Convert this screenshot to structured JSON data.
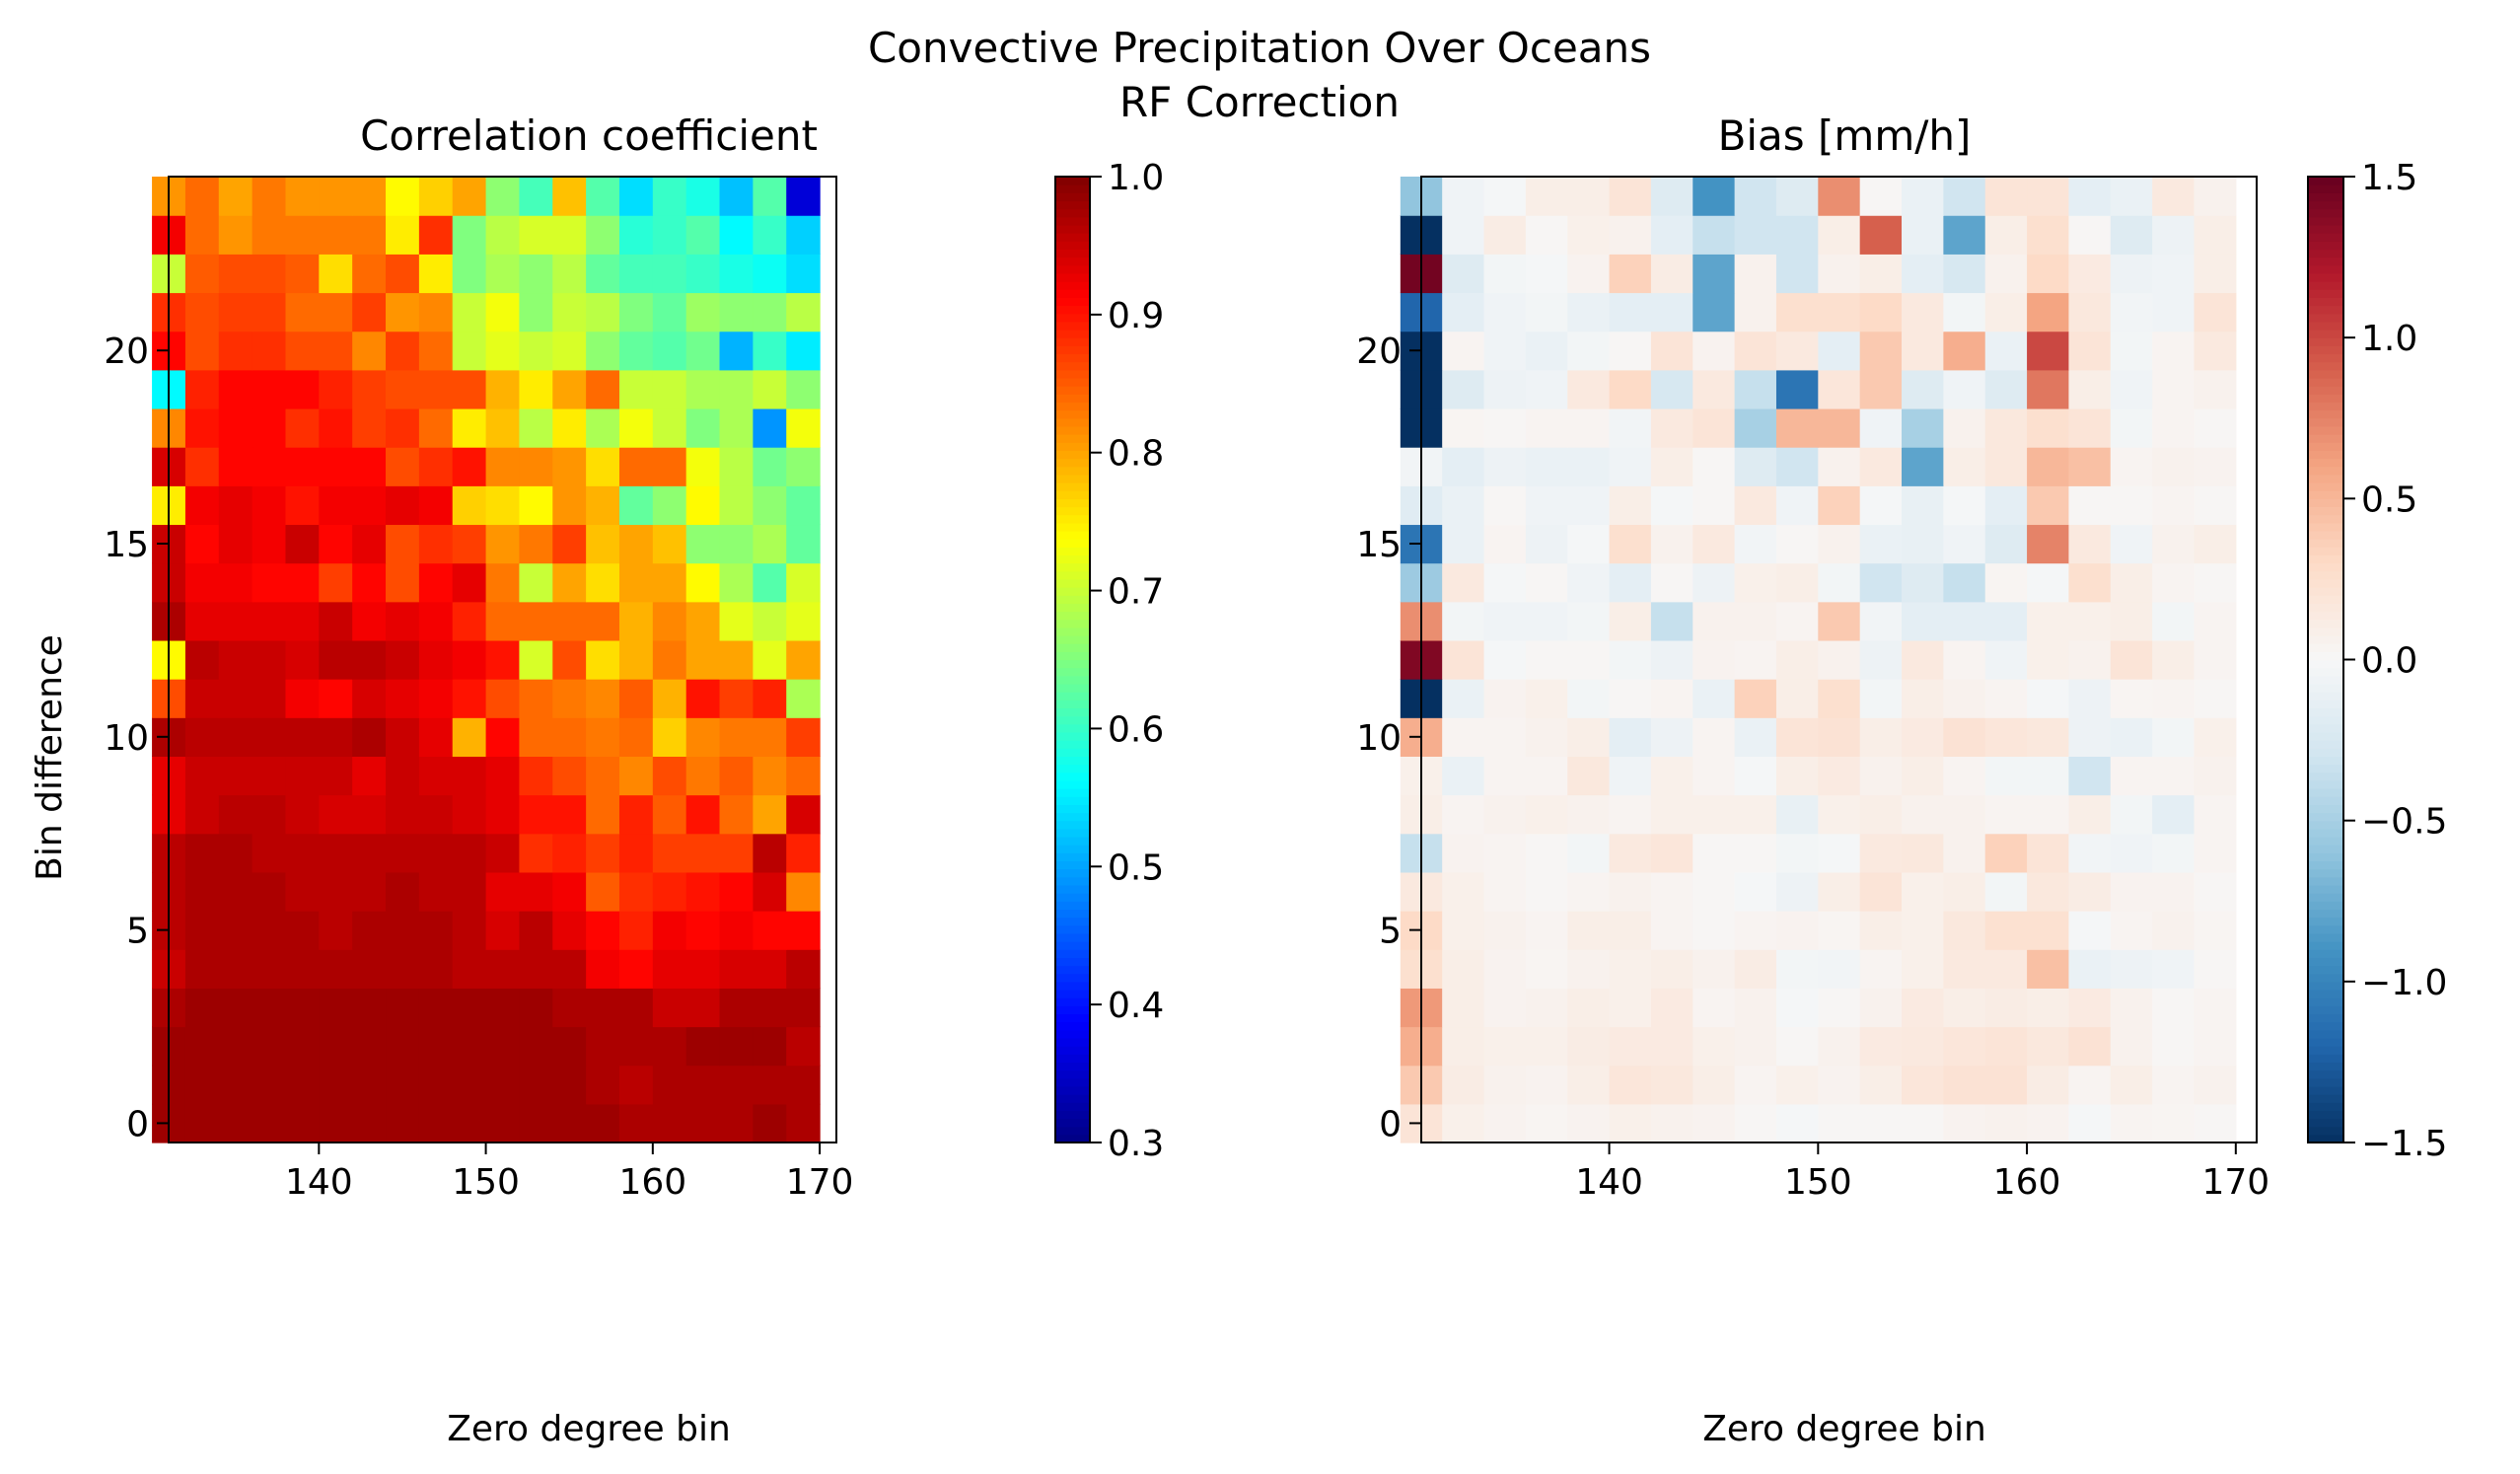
{
  "figure": {
    "title": "Convective Precipitation Over Oceans",
    "subtitle": "RF Correction"
  },
  "chart_data": [
    {
      "type": "heatmap",
      "title": "Correlation coefficient",
      "xlabel": "Zero degree bin",
      "ylabel": "Bin difference",
      "x_start": 131,
      "x_step": 2,
      "y_start": 0,
      "y_step": 1,
      "xlim": [
        131,
        171
      ],
      "ylim": [
        -0.5,
        24.5
      ],
      "xticks": [
        140,
        150,
        160,
        170
      ],
      "yticks": [
        0,
        5,
        10,
        15,
        20
      ],
      "colormap": "jet",
      "clim": [
        0.3,
        1.0
      ],
      "colorbar_ticks": [
        1.0,
        0.9,
        0.8,
        0.7,
        0.6,
        0.5,
        0.4,
        0.3
      ],
      "colorbar_tick_labels": [
        "1.0",
        "0.9",
        "0.8",
        "0.7",
        "0.6",
        "0.5",
        "0.4",
        "0.3"
      ],
      "grid": false,
      "values": [
        [
          0.98,
          0.98,
          0.98,
          0.98,
          0.98,
          0.98,
          0.98,
          0.98,
          0.98,
          0.98,
          0.98,
          0.98,
          0.98,
          0.98,
          0.97,
          0.97,
          0.97,
          0.97,
          0.98,
          0.97
        ],
        [
          0.98,
          0.98,
          0.98,
          0.98,
          0.98,
          0.98,
          0.98,
          0.98,
          0.98,
          0.98,
          0.98,
          0.98,
          0.98,
          0.97,
          0.96,
          0.97,
          0.97,
          0.97,
          0.97,
          0.97
        ],
        [
          0.98,
          0.98,
          0.98,
          0.98,
          0.98,
          0.98,
          0.98,
          0.98,
          0.98,
          0.98,
          0.98,
          0.98,
          0.98,
          0.97,
          0.97,
          0.97,
          0.98,
          0.98,
          0.98,
          0.96
        ],
        [
          0.97,
          0.98,
          0.98,
          0.98,
          0.98,
          0.98,
          0.98,
          0.98,
          0.98,
          0.98,
          0.98,
          0.98,
          0.97,
          0.97,
          0.97,
          0.95,
          0.95,
          0.97,
          0.97,
          0.97
        ],
        [
          0.95,
          0.97,
          0.97,
          0.97,
          0.97,
          0.97,
          0.97,
          0.97,
          0.97,
          0.96,
          0.96,
          0.96,
          0.96,
          0.92,
          0.91,
          0.93,
          0.93,
          0.94,
          0.94,
          0.96
        ],
        [
          0.96,
          0.97,
          0.97,
          0.97,
          0.97,
          0.96,
          0.97,
          0.97,
          0.97,
          0.96,
          0.94,
          0.96,
          0.93,
          0.91,
          0.89,
          0.92,
          0.91,
          0.92,
          0.91,
          0.91
        ],
        [
          0.96,
          0.97,
          0.97,
          0.97,
          0.96,
          0.96,
          0.96,
          0.97,
          0.96,
          0.96,
          0.93,
          0.93,
          0.92,
          0.85,
          0.88,
          0.89,
          0.9,
          0.91,
          0.94,
          0.82
        ],
        [
          0.96,
          0.97,
          0.97,
          0.96,
          0.96,
          0.96,
          0.96,
          0.96,
          0.96,
          0.96,
          0.95,
          0.88,
          0.89,
          0.87,
          0.89,
          0.87,
          0.87,
          0.87,
          0.96,
          0.89
        ],
        [
          0.93,
          0.95,
          0.96,
          0.96,
          0.95,
          0.94,
          0.94,
          0.95,
          0.95,
          0.94,
          0.93,
          0.9,
          0.9,
          0.84,
          0.89,
          0.85,
          0.9,
          0.84,
          0.8,
          0.94
        ],
        [
          0.93,
          0.95,
          0.95,
          0.95,
          0.95,
          0.95,
          0.93,
          0.95,
          0.94,
          0.94,
          0.93,
          0.88,
          0.86,
          0.84,
          0.82,
          0.86,
          0.83,
          0.85,
          0.82,
          0.84
        ],
        [
          0.97,
          0.96,
          0.96,
          0.96,
          0.96,
          0.96,
          0.97,
          0.95,
          0.93,
          0.79,
          0.91,
          0.84,
          0.84,
          0.83,
          0.84,
          0.77,
          0.82,
          0.83,
          0.83,
          0.87
        ],
        [
          0.86,
          0.95,
          0.95,
          0.95,
          0.92,
          0.91,
          0.94,
          0.93,
          0.92,
          0.9,
          0.86,
          0.84,
          0.83,
          0.82,
          0.85,
          0.79,
          0.9,
          0.87,
          0.89,
          0.68
        ],
        [
          0.74,
          0.96,
          0.95,
          0.95,
          0.94,
          0.96,
          0.96,
          0.95,
          0.93,
          0.92,
          0.9,
          0.71,
          0.86,
          0.76,
          0.79,
          0.83,
          0.8,
          0.8,
          0.72,
          0.8
        ],
        [
          0.97,
          0.93,
          0.93,
          0.93,
          0.93,
          0.95,
          0.92,
          0.93,
          0.92,
          0.89,
          0.84,
          0.84,
          0.84,
          0.84,
          0.79,
          0.82,
          0.8,
          0.72,
          0.7,
          0.72
        ],
        [
          0.95,
          0.92,
          0.92,
          0.91,
          0.91,
          0.87,
          0.91,
          0.86,
          0.91,
          0.93,
          0.83,
          0.7,
          0.8,
          0.76,
          0.8,
          0.8,
          0.74,
          0.68,
          0.62,
          0.71
        ],
        [
          0.95,
          0.91,
          0.93,
          0.92,
          0.95,
          0.91,
          0.93,
          0.86,
          0.88,
          0.87,
          0.81,
          0.83,
          0.87,
          0.78,
          0.8,
          0.78,
          0.66,
          0.66,
          0.68,
          0.63
        ],
        [
          0.75,
          0.92,
          0.93,
          0.92,
          0.9,
          0.92,
          0.92,
          0.93,
          0.92,
          0.77,
          0.76,
          0.74,
          0.81,
          0.79,
          0.63,
          0.66,
          0.74,
          0.69,
          0.66,
          0.63
        ],
        [
          0.94,
          0.88,
          0.91,
          0.91,
          0.91,
          0.91,
          0.91,
          0.86,
          0.88,
          0.9,
          0.82,
          0.82,
          0.81,
          0.76,
          0.84,
          0.84,
          0.73,
          0.69,
          0.64,
          0.66
        ],
        [
          0.82,
          0.9,
          0.91,
          0.91,
          0.88,
          0.9,
          0.87,
          0.88,
          0.84,
          0.75,
          0.78,
          0.69,
          0.75,
          0.68,
          0.73,
          0.7,
          0.65,
          0.68,
          0.49,
          0.73
        ],
        [
          0.56,
          0.89,
          0.91,
          0.91,
          0.91,
          0.89,
          0.87,
          0.86,
          0.86,
          0.86,
          0.79,
          0.75,
          0.8,
          0.84,
          0.7,
          0.7,
          0.68,
          0.68,
          0.7,
          0.66
        ],
        [
          0.91,
          0.86,
          0.88,
          0.88,
          0.86,
          0.86,
          0.82,
          0.87,
          0.84,
          0.7,
          0.72,
          0.7,
          0.71,
          0.66,
          0.63,
          0.62,
          0.64,
          0.51,
          0.6,
          0.55
        ],
        [
          0.88,
          0.86,
          0.87,
          0.87,
          0.84,
          0.84,
          0.87,
          0.81,
          0.82,
          0.7,
          0.73,
          0.66,
          0.7,
          0.69,
          0.65,
          0.63,
          0.67,
          0.66,
          0.66,
          0.69
        ],
        [
          0.7,
          0.85,
          0.86,
          0.86,
          0.85,
          0.76,
          0.84,
          0.86,
          0.75,
          0.65,
          0.68,
          0.66,
          0.69,
          0.63,
          0.61,
          0.61,
          0.6,
          0.58,
          0.57,
          0.54
        ],
        [
          0.92,
          0.84,
          0.81,
          0.83,
          0.83,
          0.83,
          0.83,
          0.75,
          0.88,
          0.65,
          0.69,
          0.71,
          0.71,
          0.66,
          0.59,
          0.6,
          0.62,
          0.56,
          0.6,
          0.53
        ],
        [
          0.81,
          0.84,
          0.8,
          0.83,
          0.81,
          0.81,
          0.81,
          0.74,
          0.77,
          0.8,
          0.66,
          0.61,
          0.78,
          0.62,
          0.54,
          0.6,
          0.58,
          0.52,
          0.62,
          0.36
        ]
      ]
    },
    {
      "type": "heatmap",
      "title": "Bias [mm/h]",
      "xlabel": "Zero degree bin",
      "ylabel": "",
      "x_start": 131,
      "x_step": 2,
      "y_start": 0,
      "y_step": 1,
      "xlim": [
        131,
        171
      ],
      "ylim": [
        -0.5,
        24.5
      ],
      "xticks": [
        140,
        150,
        160,
        170
      ],
      "yticks": [
        0,
        5,
        10,
        15,
        20
      ],
      "colormap": "RdBu_r",
      "clim": [
        -1.5,
        1.5
      ],
      "colorbar_ticks": [
        1.5,
        1.0,
        0.5,
        0.0,
        -0.5,
        -1.0,
        -1.5
      ],
      "colorbar_tick_labels": [
        "1.5",
        "1.0",
        "0.5",
        "0.0",
        "−0.5",
        "−1.0",
        "−1.5"
      ],
      "grid": false,
      "values": [
        [
          0.2,
          0.08,
          0.05,
          0.03,
          0.05,
          0.08,
          0.06,
          0.05,
          0.02,
          -0.02,
          0.02,
          0.02,
          0.02,
          0.05,
          0.06,
          0.05,
          -0.02,
          0.04,
          0.03,
          0.02
        ],
        [
          0.4,
          0.12,
          0.06,
          0.05,
          0.1,
          0.18,
          0.16,
          0.1,
          0.04,
          0.08,
          0.05,
          0.1,
          0.18,
          0.22,
          0.22,
          0.12,
          0.04,
          0.1,
          0.04,
          0.06
        ],
        [
          0.55,
          0.1,
          0.08,
          0.08,
          0.12,
          0.14,
          0.14,
          0.08,
          0.06,
          0.02,
          0.06,
          0.14,
          0.15,
          0.18,
          0.2,
          0.16,
          0.22,
          0.06,
          0.02,
          0.04
        ],
        [
          0.65,
          0.1,
          0.05,
          0.06,
          0.1,
          0.08,
          0.14,
          0.04,
          0.06,
          -0.02,
          0.02,
          0.06,
          0.14,
          0.1,
          0.12,
          0.1,
          0.14,
          0.06,
          0.02,
          0.04
        ],
        [
          0.25,
          0.1,
          0.05,
          0.03,
          0.06,
          0.08,
          0.1,
          0.06,
          0.12,
          -0.04,
          -0.05,
          0.04,
          0.08,
          0.15,
          0.15,
          0.45,
          -0.1,
          -0.08,
          -0.06,
          0.02
        ],
        [
          0.3,
          0.08,
          0.06,
          0.04,
          0.1,
          0.1,
          0.04,
          0.02,
          0.04,
          0.05,
          0.03,
          0.1,
          0.08,
          0.16,
          0.24,
          0.24,
          -0.02,
          0.04,
          0.06,
          0.03
        ],
        [
          0.15,
          0.08,
          0.04,
          0.02,
          0.04,
          0.06,
          0.04,
          0.02,
          -0.02,
          -0.08,
          0.1,
          0.2,
          0.08,
          0.1,
          -0.04,
          0.16,
          0.12,
          0.05,
          0.05,
          0.02
        ],
        [
          -0.35,
          0.05,
          0.04,
          0.02,
          -0.04,
          0.15,
          0.18,
          0.02,
          0.02,
          -0.04,
          -0.02,
          0.15,
          0.16,
          0.06,
          0.35,
          0.2,
          -0.05,
          -0.06,
          -0.04,
          0.04
        ],
        [
          0.1,
          0.04,
          0.06,
          0.08,
          0.06,
          0.04,
          0.08,
          0.08,
          0.08,
          -0.12,
          0.08,
          0.1,
          0.06,
          0.06,
          0.04,
          0.04,
          0.1,
          -0.04,
          -0.15,
          0.04
        ],
        [
          0.08,
          -0.1,
          0.04,
          0.04,
          0.16,
          -0.06,
          0.08,
          0.04,
          -0.02,
          0.1,
          0.14,
          0.06,
          0.1,
          0.04,
          -0.04,
          -0.04,
          -0.3,
          0.04,
          0.04,
          0.06
        ],
        [
          0.55,
          0.04,
          0.04,
          0.06,
          0.1,
          -0.15,
          -0.08,
          0.04,
          -0.1,
          0.2,
          0.22,
          0.1,
          0.14,
          0.22,
          0.18,
          0.16,
          -0.08,
          -0.1,
          -0.04,
          0.08
        ],
        [
          -1.5,
          -0.1,
          0.05,
          0.08,
          -0.04,
          0.02,
          0.04,
          -0.1,
          0.35,
          0.1,
          0.25,
          -0.04,
          0.1,
          0.06,
          0.04,
          -0.02,
          -0.08,
          0.03,
          0.04,
          0.02
        ],
        [
          1.4,
          0.2,
          -0.02,
          0.02,
          0.02,
          -0.04,
          -0.08,
          0.05,
          0.04,
          0.1,
          0.06,
          -0.08,
          0.15,
          0.04,
          -0.06,
          0.08,
          0.06,
          0.2,
          0.1,
          0.04
        ],
        [
          0.7,
          -0.04,
          -0.06,
          -0.06,
          -0.04,
          0.1,
          -0.35,
          0.06,
          0.06,
          0.04,
          0.4,
          -0.05,
          -0.15,
          -0.15,
          -0.15,
          0.08,
          0.08,
          0.1,
          -0.04,
          0.04
        ],
        [
          -0.55,
          0.15,
          -0.02,
          0.02,
          -0.06,
          -0.15,
          0.02,
          -0.08,
          0.08,
          0.1,
          -0.04,
          -0.3,
          -0.2,
          -0.35,
          0.03,
          -0.02,
          0.25,
          0.1,
          0.04,
          0.02
        ],
        [
          -1.1,
          -0.1,
          0.04,
          -0.08,
          -0.02,
          0.25,
          0.06,
          0.15,
          -0.05,
          0.02,
          0.06,
          -0.1,
          -0.12,
          -0.06,
          -0.2,
          0.75,
          0.15,
          -0.06,
          0.06,
          0.1
        ],
        [
          -0.18,
          -0.1,
          0.02,
          -0.06,
          -0.06,
          0.1,
          -0.02,
          0.02,
          0.15,
          -0.06,
          0.35,
          -0.02,
          -0.12,
          -0.02,
          -0.15,
          0.4,
          0.02,
          0.02,
          0.04,
          0.02
        ],
        [
          -0.05,
          -0.15,
          -0.08,
          -0.1,
          -0.1,
          -0.06,
          0.1,
          0.02,
          -0.2,
          -0.3,
          0.06,
          0.15,
          -0.8,
          0.1,
          0.16,
          0.5,
          0.45,
          0.04,
          0.06,
          0.05
        ],
        [
          -1.5,
          0.03,
          0.02,
          0.04,
          0.04,
          -0.05,
          0.15,
          0.2,
          -0.5,
          0.5,
          0.5,
          -0.06,
          -0.5,
          0.06,
          0.16,
          0.25,
          0.2,
          -0.04,
          0.04,
          0.02
        ],
        [
          -1.5,
          -0.2,
          -0.08,
          -0.06,
          0.15,
          0.3,
          -0.25,
          0.15,
          -0.35,
          -1.1,
          0.18,
          0.4,
          -0.2,
          -0.06,
          -0.2,
          0.8,
          0.1,
          -0.06,
          0.04,
          0.06
        ],
        [
          -1.5,
          0.04,
          -0.06,
          -0.1,
          -0.04,
          0.02,
          0.2,
          0.05,
          0.2,
          0.15,
          -0.15,
          0.4,
          0.15,
          0.55,
          -0.1,
          1.0,
          0.2,
          -0.04,
          0.04,
          0.15
        ],
        [
          -1.2,
          -0.15,
          -0.06,
          -0.04,
          -0.1,
          -0.15,
          -0.15,
          -0.8,
          0.06,
          0.25,
          0.25,
          0.3,
          0.15,
          -0.04,
          0.1,
          0.6,
          0.16,
          -0.05,
          -0.06,
          0.2
        ],
        [
          1.45,
          -0.2,
          -0.04,
          -0.02,
          0.05,
          0.35,
          0.12,
          -0.8,
          0.06,
          -0.3,
          0.06,
          0.1,
          -0.15,
          -0.25,
          0.06,
          0.3,
          0.14,
          -0.08,
          -0.06,
          0.1
        ],
        [
          -1.5,
          -0.06,
          0.12,
          0.02,
          0.08,
          0.06,
          -0.15,
          -0.35,
          -0.3,
          -0.3,
          0.1,
          0.9,
          -0.1,
          -0.8,
          0.1,
          0.25,
          0.02,
          -0.2,
          -0.08,
          0.1
        ],
        [
          -0.6,
          -0.06,
          -0.02,
          0.1,
          0.1,
          0.2,
          -0.2,
          -0.9,
          -0.3,
          -0.2,
          0.7,
          0.02,
          -0.1,
          -0.3,
          0.2,
          0.2,
          -0.15,
          -0.1,
          0.15,
          0.06
        ]
      ]
    }
  ]
}
